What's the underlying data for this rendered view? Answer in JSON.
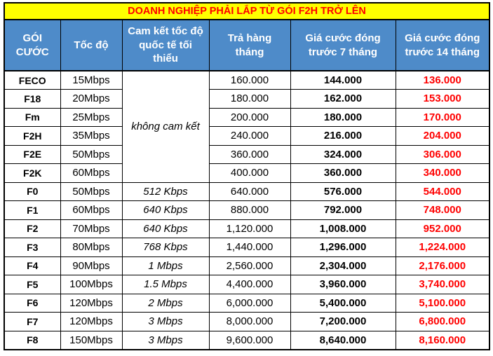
{
  "title": "DOANH NGHIỆP PHẢI LẮP TỪ GÓI F2H TRỞ LÊN",
  "columns": [
    "GÓI CƯỚC",
    "Tốc độ",
    "Cam kết tốc độ quốc tế tối thiểu",
    "Trả hàng tháng",
    "Giá cước đóng trước 7 tháng",
    "Giá cước đóng trước 14 tháng"
  ],
  "merged_commitment": "không cam kết",
  "merged_commitment_rowspan": 6,
  "rows": [
    {
      "plan": "FECO",
      "speed": "15Mbps",
      "commitment": null,
      "monthly": "160.000",
      "prepay7": "144.000",
      "prepay14": "136.000"
    },
    {
      "plan": "F18",
      "speed": "20Mbps",
      "commitment": null,
      "monthly": "180.000",
      "prepay7": "162.000",
      "prepay14": "153.000"
    },
    {
      "plan": "Fm",
      "speed": "25Mbps",
      "commitment": null,
      "monthly": "200.000",
      "prepay7": "180.000",
      "prepay14": "170.000"
    },
    {
      "plan": "F2H",
      "speed": "35Mbps",
      "commitment": null,
      "monthly": "240.000",
      "prepay7": "216.000",
      "prepay14": "204.000"
    },
    {
      "plan": "F2E",
      "speed": "50Mbps",
      "commitment": null,
      "monthly": "360.000",
      "prepay7": "324.000",
      "prepay14": "306.000"
    },
    {
      "plan": "F2K",
      "speed": "60Mbps",
      "commitment": null,
      "monthly": "400.000",
      "prepay7": "360.000",
      "prepay14": "340.000"
    },
    {
      "plan": "F0",
      "speed": "50Mbps",
      "commitment": "512 Kbps",
      "monthly": "640.000",
      "prepay7": "576.000",
      "prepay14": "544.000"
    },
    {
      "plan": "F1",
      "speed": "60Mbps",
      "commitment": "640 Kbps",
      "monthly": "880.000",
      "prepay7": "792.000",
      "prepay14": "748.000"
    },
    {
      "plan": "F2",
      "speed": "70Mbps",
      "commitment": "640 Kbps",
      "monthly": "1,120.000",
      "prepay7": "1,008.000",
      "prepay14": "952.000"
    },
    {
      "plan": "F3",
      "speed": "80Mbps",
      "commitment": "768 Kbps",
      "monthly": "1,440.000",
      "prepay7": "1,296.000",
      "prepay14": "1,224.000"
    },
    {
      "plan": "F4",
      "speed": "90Mbps",
      "commitment": "1 Mbps",
      "monthly": "2,560.000",
      "prepay7": "2,304.000",
      "prepay14": "2,176.000"
    },
    {
      "plan": "F5",
      "speed": "100Mbps",
      "commitment": "1.5 Mbps",
      "monthly": "4,400.000",
      "prepay7": "3,960.000",
      "prepay14": "3,740.000"
    },
    {
      "plan": "F6",
      "speed": "120Mbps",
      "commitment": "2 Mbps",
      "monthly": "6,000.000",
      "prepay7": "5,400.000",
      "prepay14": "5,100.000"
    },
    {
      "plan": "F7",
      "speed": "120Mbps",
      "commitment": "3 Mbps",
      "monthly": "8,000.000",
      "prepay7": "7,200.000",
      "prepay14": "6,800.000"
    },
    {
      "plan": "F8",
      "speed": "150Mbps",
      "commitment": "3 Mbps",
      "monthly": "9,600.000",
      "prepay7": "8,640.000",
      "prepay14": "8,160.000"
    }
  ],
  "colors": {
    "header_bg": "#4E8BC9",
    "title_bg": "#FFFF00",
    "title_text": "#FF0000",
    "highlight_text": "#FF0000",
    "border": "#000000"
  }
}
